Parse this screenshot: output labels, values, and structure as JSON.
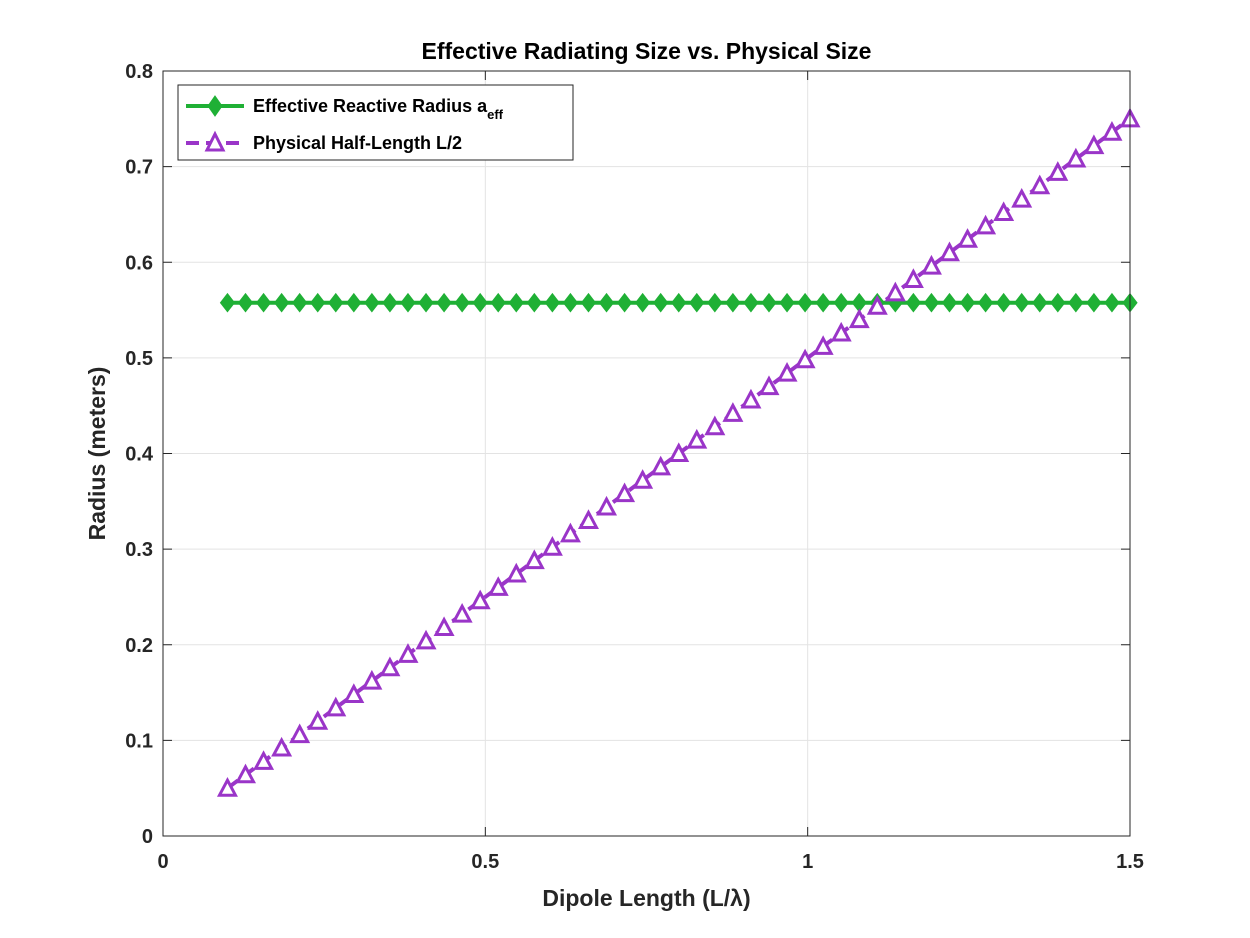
{
  "chart_data": {
    "type": "line",
    "title": "Effective Radiating Size vs. Physical Size",
    "xlabel": "Dipole Length (L/λ)",
    "ylabel": "Radius (meters)",
    "xlim": [
      0,
      1.5
    ],
    "ylim": [
      0,
      0.8
    ],
    "xticks": [
      0,
      0.5,
      1,
      1.5
    ],
    "xtick_labels": [
      "0",
      "0.5",
      "1",
      "1.5"
    ],
    "yticks": [
      0,
      0.1,
      0.2,
      0.3,
      0.4,
      0.5,
      0.6,
      0.7,
      0.8
    ],
    "ytick_labels": [
      "0",
      "0.1",
      "0.2",
      "0.3",
      "0.4",
      "0.5",
      "0.6",
      "0.7",
      "0.8"
    ],
    "grid": true,
    "legend_position": "top-left",
    "x": {
      "start": 0.1,
      "stop": 1.5,
      "count": 51
    },
    "series": [
      {
        "name": "Effective Reactive Radius a",
        "name_subscript": "eff",
        "color": "#1fb035",
        "line_style": "solid",
        "marker": "diamond",
        "values": {
          "constant": 0.5577
        }
      },
      {
        "name": "Physical Half-Length L/2",
        "color": "#9a35c8",
        "line_style": "dashed",
        "marker": "triangle-open",
        "values": {
          "formula": "x/2"
        }
      }
    ]
  }
}
